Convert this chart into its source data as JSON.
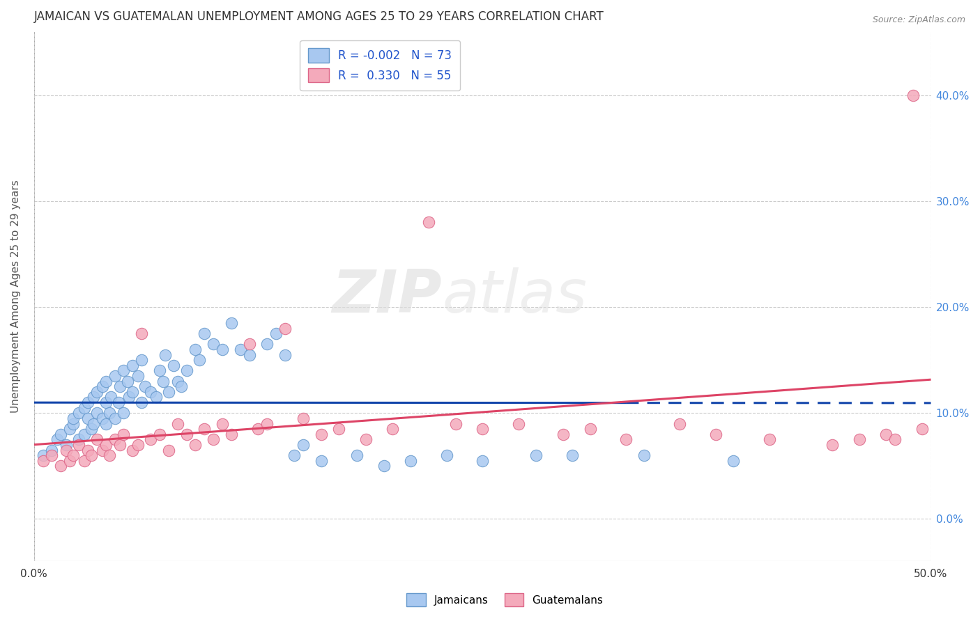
{
  "title": "JAMAICAN VS GUATEMALAN UNEMPLOYMENT AMONG AGES 25 TO 29 YEARS CORRELATION CHART",
  "source": "Source: ZipAtlas.com",
  "ylabel": "Unemployment Among Ages 25 to 29 years",
  "xlim": [
    0.0,
    0.5
  ],
  "ylim": [
    -0.04,
    0.46
  ],
  "xticks": [
    0.0,
    0.5
  ],
  "yticks": [
    0.0,
    0.1,
    0.2,
    0.3,
    0.4
  ],
  "xtick_labels": [
    "0.0%",
    "50.0%"
  ],
  "right_ytick_labels": [
    "0.0%",
    "10.0%",
    "20.0%",
    "30.0%",
    "40.0%"
  ],
  "right_yticks": [
    0.0,
    0.1,
    0.2,
    0.3,
    0.4
  ],
  "jamaican_color": "#A8C8F0",
  "guatemalan_color": "#F4AABB",
  "jamaican_edge_color": "#6699CC",
  "guatemalan_edge_color": "#DD6688",
  "jamaican_line_color": "#1144AA",
  "guatemalan_line_color": "#DD4466",
  "r_jamaican": -0.002,
  "n_jamaican": 73,
  "r_guatemalan": 0.33,
  "n_guatemalan": 55,
  "legend_label_jamaican": "Jamaicans",
  "legend_label_guatemalan": "Guatemalans",
  "watermark_zip": "ZIP",
  "watermark_atlas": "atlas",
  "background_color": "#FFFFFF",
  "grid_color": "#CCCCCC",
  "title_color": "#333333",
  "axis_label_color": "#555555",
  "right_axis_color": "#4488DD",
  "jamaican_x": [
    0.005,
    0.01,
    0.013,
    0.015,
    0.018,
    0.02,
    0.022,
    0.022,
    0.025,
    0.025,
    0.028,
    0.028,
    0.03,
    0.03,
    0.032,
    0.033,
    0.033,
    0.035,
    0.035,
    0.038,
    0.038,
    0.04,
    0.04,
    0.04,
    0.042,
    0.043,
    0.045,
    0.045,
    0.047,
    0.048,
    0.05,
    0.05,
    0.052,
    0.053,
    0.055,
    0.055,
    0.058,
    0.06,
    0.06,
    0.062,
    0.065,
    0.068,
    0.07,
    0.072,
    0.073,
    0.075,
    0.078,
    0.08,
    0.082,
    0.085,
    0.09,
    0.092,
    0.095,
    0.1,
    0.105,
    0.11,
    0.115,
    0.12,
    0.13,
    0.135,
    0.14,
    0.145,
    0.15,
    0.16,
    0.18,
    0.195,
    0.21,
    0.23,
    0.25,
    0.28,
    0.3,
    0.34,
    0.39
  ],
  "jamaican_y": [
    0.06,
    0.065,
    0.075,
    0.08,
    0.07,
    0.085,
    0.09,
    0.095,
    0.075,
    0.1,
    0.08,
    0.105,
    0.095,
    0.11,
    0.085,
    0.09,
    0.115,
    0.1,
    0.12,
    0.095,
    0.125,
    0.09,
    0.11,
    0.13,
    0.1,
    0.115,
    0.095,
    0.135,
    0.11,
    0.125,
    0.1,
    0.14,
    0.13,
    0.115,
    0.145,
    0.12,
    0.135,
    0.11,
    0.15,
    0.125,
    0.12,
    0.115,
    0.14,
    0.13,
    0.155,
    0.12,
    0.145,
    0.13,
    0.125,
    0.14,
    0.16,
    0.15,
    0.175,
    0.165,
    0.16,
    0.185,
    0.16,
    0.155,
    0.165,
    0.175,
    0.155,
    0.06,
    0.07,
    0.055,
    0.06,
    0.05,
    0.055,
    0.06,
    0.055,
    0.06,
    0.06,
    0.06,
    0.055
  ],
  "guatemalan_x": [
    0.005,
    0.01,
    0.015,
    0.018,
    0.02,
    0.022,
    0.025,
    0.028,
    0.03,
    0.032,
    0.035,
    0.038,
    0.04,
    0.042,
    0.045,
    0.048,
    0.05,
    0.055,
    0.058,
    0.06,
    0.065,
    0.07,
    0.075,
    0.08,
    0.085,
    0.09,
    0.095,
    0.1,
    0.105,
    0.11,
    0.12,
    0.125,
    0.13,
    0.14,
    0.15,
    0.16,
    0.17,
    0.185,
    0.2,
    0.22,
    0.235,
    0.25,
    0.27,
    0.295,
    0.31,
    0.33,
    0.36,
    0.38,
    0.41,
    0.445,
    0.46,
    0.475,
    0.48,
    0.49,
    0.495
  ],
  "guatemalan_y": [
    0.055,
    0.06,
    0.05,
    0.065,
    0.055,
    0.06,
    0.07,
    0.055,
    0.065,
    0.06,
    0.075,
    0.065,
    0.07,
    0.06,
    0.075,
    0.07,
    0.08,
    0.065,
    0.07,
    0.175,
    0.075,
    0.08,
    0.065,
    0.09,
    0.08,
    0.07,
    0.085,
    0.075,
    0.09,
    0.08,
    0.165,
    0.085,
    0.09,
    0.18,
    0.095,
    0.08,
    0.085,
    0.075,
    0.085,
    0.28,
    0.09,
    0.085,
    0.09,
    0.08,
    0.085,
    0.075,
    0.09,
    0.08,
    0.075,
    0.07,
    0.075,
    0.08,
    0.075,
    0.4,
    0.085
  ]
}
